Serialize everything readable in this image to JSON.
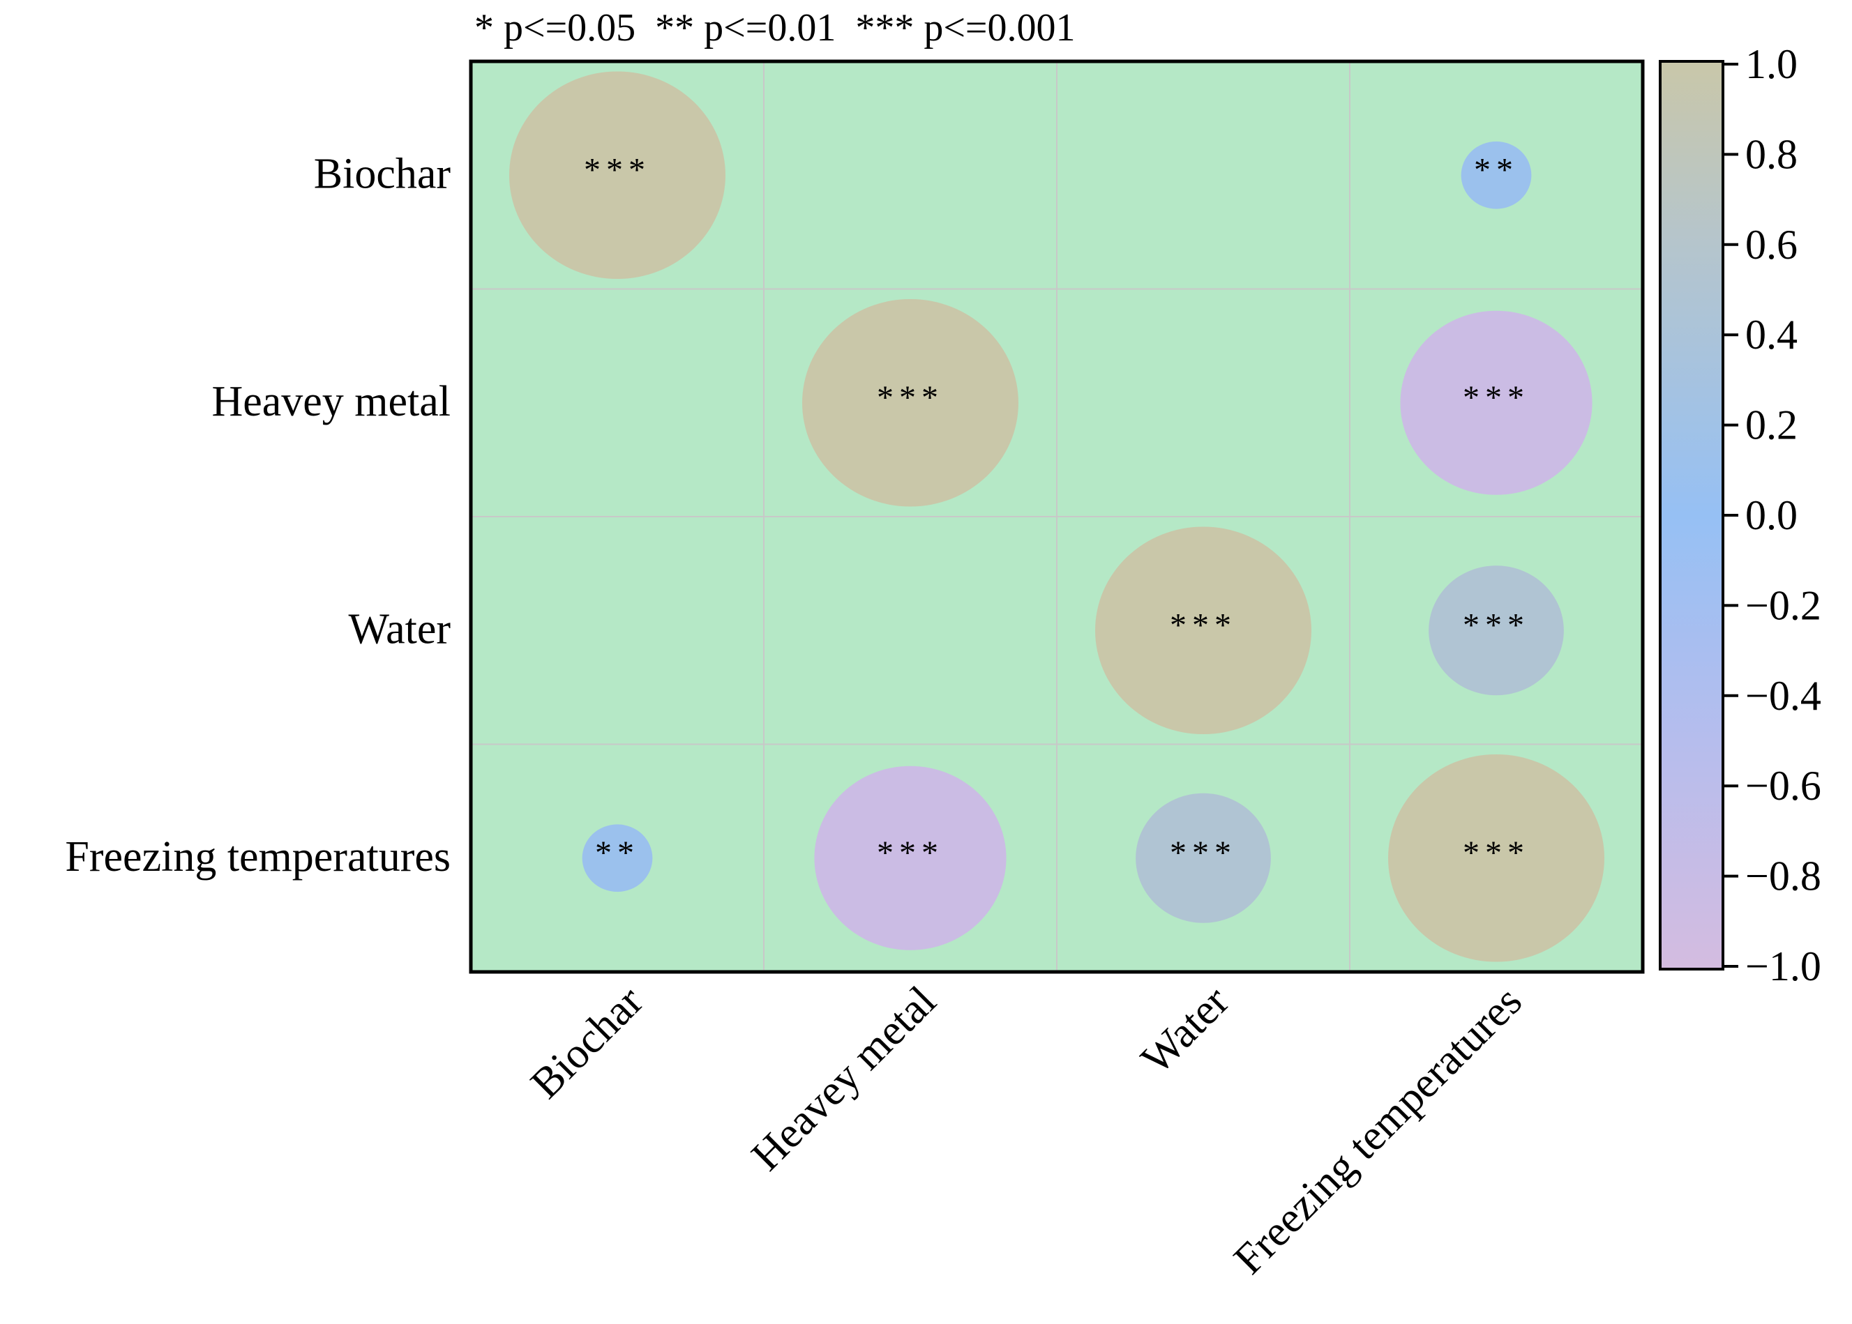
{
  "chart_data": {
    "type": "heatmap",
    "subtype": "correlation-circle-matrix",
    "title": "* p<=0.05  ** p<=0.01  *** p<=0.001",
    "variables": [
      "Biochar",
      "Heavey metal",
      "Water",
      "Freezing temperatures"
    ],
    "cells": [
      {
        "row": "Biochar",
        "col": "Biochar",
        "r": 1.0,
        "sig": "***"
      },
      {
        "row": "Biochar",
        "col": "Freezing temperatures",
        "r": 0.1,
        "sig": "**"
      },
      {
        "row": "Heavey metal",
        "col": "Heavey metal",
        "r": 1.0,
        "sig": "***"
      },
      {
        "row": "Heavey metal",
        "col": "Freezing temperatures",
        "r": -0.85,
        "sig": "***"
      },
      {
        "row": "Water",
        "col": "Water",
        "r": 1.0,
        "sig": "***"
      },
      {
        "row": "Water",
        "col": "Freezing temperatures",
        "r": 0.5,
        "sig": "***"
      },
      {
        "row": "Freezing temperatures",
        "col": "Biochar",
        "r": 0.1,
        "sig": "**"
      },
      {
        "row": "Freezing temperatures",
        "col": "Heavey metal",
        "r": -0.85,
        "sig": "***"
      },
      {
        "row": "Freezing temperatures",
        "col": "Water",
        "r": 0.5,
        "sig": "***"
      },
      {
        "row": "Freezing temperatures",
        "col": "Freezing temperatures",
        "r": 1.0,
        "sig": "***"
      }
    ],
    "colorbar": {
      "range": [
        -1.0,
        1.0
      ],
      "ticks": [
        "1.0",
        "0.8",
        "0.6",
        "0.4",
        "0.2",
        "0.0",
        "−0.2",
        "−0.4",
        "−0.6",
        "−0.8",
        "−1.0"
      ],
      "tick_values": [
        1.0,
        0.8,
        0.6,
        0.4,
        0.2,
        0.0,
        -0.2,
        -0.4,
        -0.6,
        -0.8,
        -1.0
      ],
      "stops": [
        {
          "value": 1.0,
          "color": "#c9c7a9"
        },
        {
          "value": 0.6,
          "color": "#b5c5cc"
        },
        {
          "value": 0.0,
          "color": "#96c0f4"
        },
        {
          "value": -0.5,
          "color": "#b6bded"
        },
        {
          "value": -1.0,
          "color": "#d4bce0"
        }
      ]
    },
    "colors": {
      "background": "#b5e8c6",
      "grid": "#c8c8c8",
      "frame": "#000000"
    }
  }
}
